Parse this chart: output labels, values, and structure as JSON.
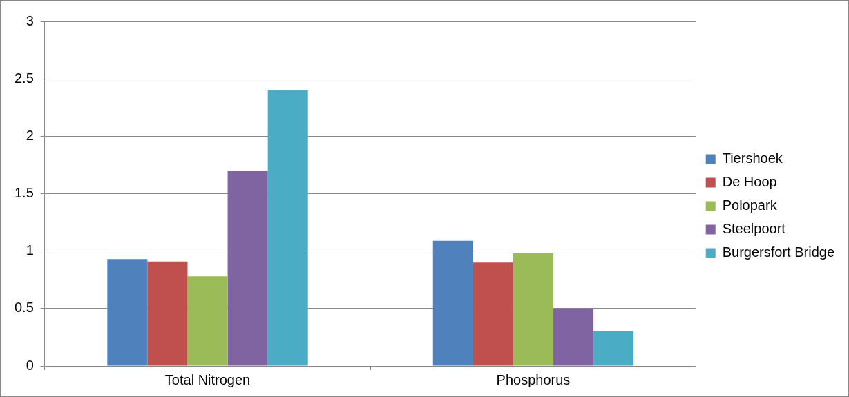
{
  "chart_data": {
    "type": "bar",
    "categories": [
      "Total Nitrogen",
      "Phosphorus"
    ],
    "series": [
      {
        "name": "Tiershoek",
        "color": "#4f81bd",
        "values": [
          0.93,
          1.09
        ]
      },
      {
        "name": "De Hoop",
        "color": "#c0504d",
        "values": [
          0.91,
          0.9
        ]
      },
      {
        "name": "Polopark",
        "color": "#9bbb59",
        "values": [
          0.78,
          0.98
        ]
      },
      {
        "name": "Steelpoort",
        "color": "#8064a2",
        "values": [
          1.7,
          0.5
        ]
      },
      {
        "name": "Burgersfort Bridge",
        "color": "#4bacc6",
        "values": [
          2.4,
          0.3
        ]
      }
    ],
    "ylim": [
      0,
      3
    ],
    "yticks": [
      0,
      0.5,
      1,
      1.5,
      2,
      2.5,
      3
    ],
    "grid": "y",
    "legend": "right"
  }
}
